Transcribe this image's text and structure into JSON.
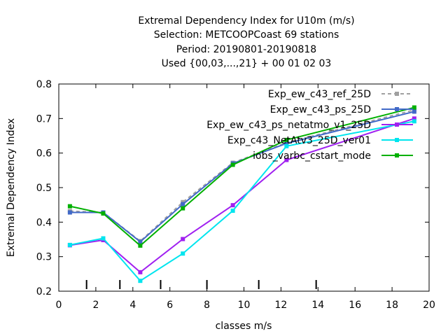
{
  "title_lines": [
    "Extremal Dependency Index  for U10m (m/s)",
    "Selection: METCOOPCoast     69 stations",
    "Period: 20190801-20190818",
    "Used {00,03,...,21} + 00 01 02 03"
  ],
  "chart_data": {
    "type": "line",
    "xlabel": "classes m/s",
    "ylabel": "Extremal Dependency Index",
    "xlim": [
      0,
      20
    ],
    "ylim": [
      0.2,
      0.8
    ],
    "xticks": [
      0,
      2,
      4,
      6,
      8,
      10,
      12,
      14,
      16,
      18,
      20
    ],
    "yticks": [
      0.2,
      0.3,
      0.4,
      0.5,
      0.6,
      0.7,
      0.8
    ],
    "class_marks": [
      1.5,
      3.3,
      5.5,
      8.0,
      10.8,
      13.9
    ],
    "grid": false,
    "legend_position": "top-right",
    "x": [
      0.6,
      2.4,
      4.4,
      6.7,
      9.4,
      12.3,
      19.2
    ],
    "series": [
      {
        "name": "Exp_ew_c43_ref_25D",
        "color": "#a0a0a0",
        "dashed": true,
        "values": [
          0.432,
          0.428,
          0.345,
          0.458,
          0.572,
          0.63,
          0.725
        ]
      },
      {
        "name": "Exp_ew_c43_ps_25D",
        "color": "#4169c8",
        "dashed": false,
        "values": [
          0.428,
          0.428,
          0.343,
          0.452,
          0.57,
          0.628,
          0.72
        ]
      },
      {
        "name": "Exp_ew_c43_ps_netatmo_v1_25D",
        "color": "#a020f0",
        "dashed": false,
        "values": [
          0.333,
          0.348,
          0.255,
          0.351,
          0.449,
          0.58,
          0.7
        ]
      },
      {
        "name": "Exp_c43_NetAtv3_25D_ver01",
        "color": "#00e5ee",
        "dashed": false,
        "values": [
          0.334,
          0.353,
          0.23,
          0.309,
          0.433,
          0.62,
          0.692
        ]
      },
      {
        "name": "iobs_varbc_cstart_mode",
        "color": "#00b000",
        "dashed": false,
        "values": [
          0.446,
          0.425,
          0.332,
          0.44,
          0.566,
          0.638,
          0.732
        ]
      }
    ]
  }
}
